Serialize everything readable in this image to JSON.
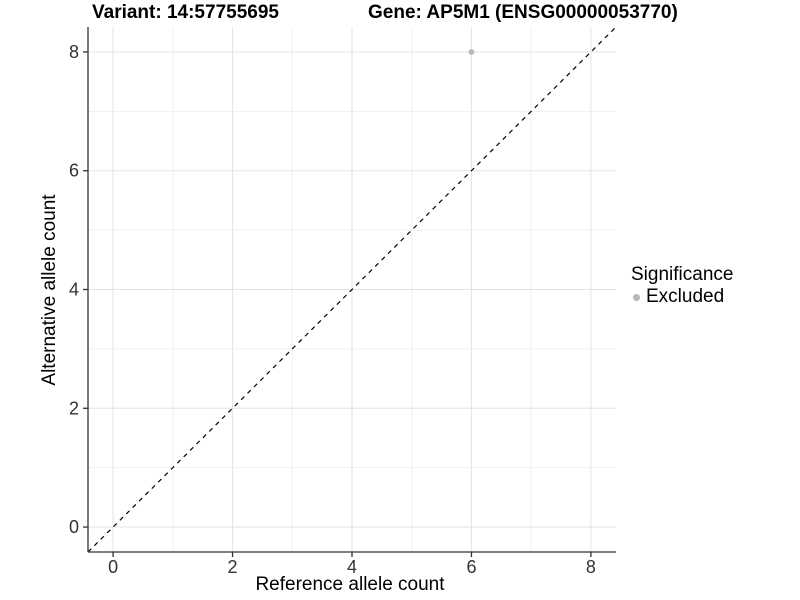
{
  "chart_data": {
    "type": "scatter",
    "title_left": "Variant: 14:57755695",
    "title_right": "Gene: AP5M1 (ENSG00000053770)",
    "xlabel": "Reference allele count",
    "ylabel": "Alternative allele count",
    "xlim": [
      -0.42,
      8.42
    ],
    "ylim": [
      -0.42,
      8.42
    ],
    "x_ticks": [
      0,
      2,
      4,
      6,
      8
    ],
    "y_ticks": [
      0,
      2,
      4,
      6,
      8
    ],
    "x_minor_gridlines": [
      1,
      3,
      5,
      7
    ],
    "y_minor_gridlines": [
      1,
      3,
      5,
      7
    ],
    "grid": "major and minor, light gray on white panel",
    "reference_line": {
      "kind": "identity y=x",
      "style": "dashed",
      "color": "#000000"
    },
    "series": [
      {
        "name": "Excluded",
        "color": "#b8b8b8",
        "points": [
          {
            "x": 6,
            "y": 8
          }
        ]
      }
    ],
    "legend": {
      "title": "Significance",
      "position": "right",
      "items": [
        {
          "label": "Excluded",
          "color": "#b8b8b8"
        }
      ]
    }
  },
  "colors": {
    "background": "#ffffff",
    "axis_line": "#333333",
    "tick_label": "#333333",
    "grid_major": "#e3e3e3",
    "grid_minor": "#f0f0f0"
  }
}
